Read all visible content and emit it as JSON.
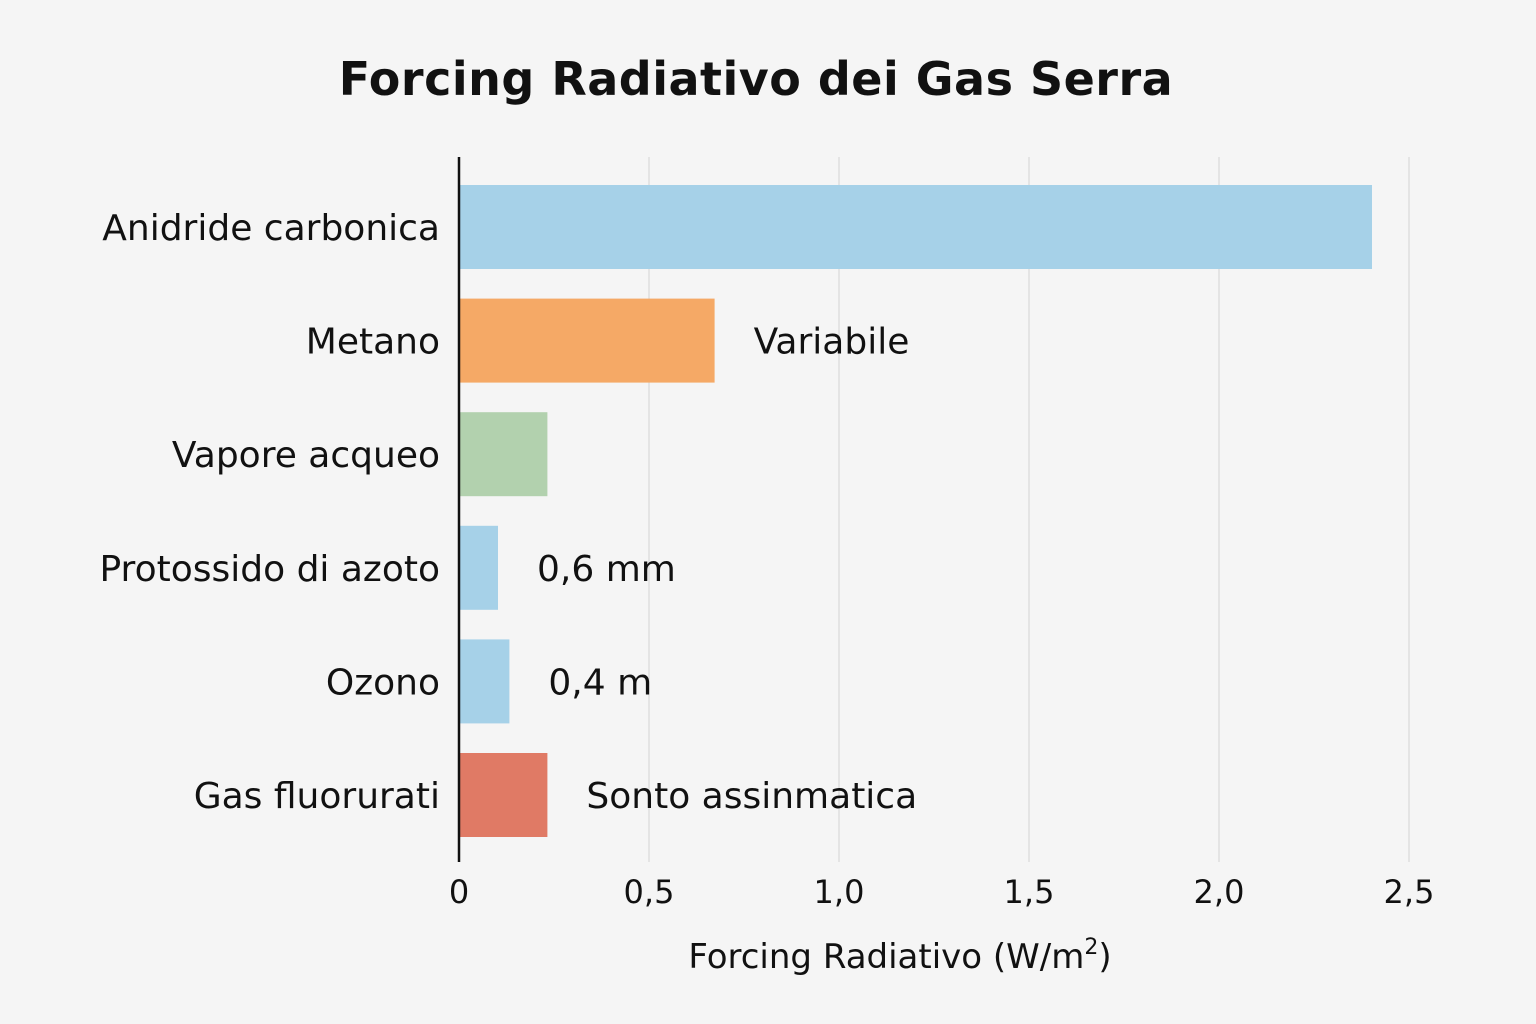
{
  "chart_data": {
    "type": "bar",
    "orientation": "horizontal",
    "title": "Forcing Radiativo dei Gas Serra",
    "xlabel": "Forcing Radiativo (W/m",
    "xlabel_superscript": "2",
    "xlabel_suffix": ")",
    "ylabel": "",
    "xlim": [
      0,
      2.5
    ],
    "xticks": [
      0,
      0.5,
      1.0,
      1.5,
      2.0,
      2.5
    ],
    "xtick_labels": [
      "0",
      "0,5",
      "1,0",
      "1,5",
      "2,0",
      "2,5"
    ],
    "grid": "vertical",
    "categories": [
      "Anidride carbonica",
      "Metano",
      "Vapore acqueo",
      "Protossido di azoto",
      "Ozono",
      "Gas fluorurati"
    ],
    "values": [
      2.4,
      0.67,
      0.23,
      0.1,
      0.13,
      0.23
    ],
    "colors": [
      "#a6d1e8",
      "#f5a966",
      "#b2d1ae",
      "#a6d1e8",
      "#a6d1e8",
      "#e07a65"
    ],
    "annotations": [
      "",
      "Variabile",
      "",
      "0,6 mm",
      "0,4 m",
      "Sonto assinmatica"
    ]
  }
}
